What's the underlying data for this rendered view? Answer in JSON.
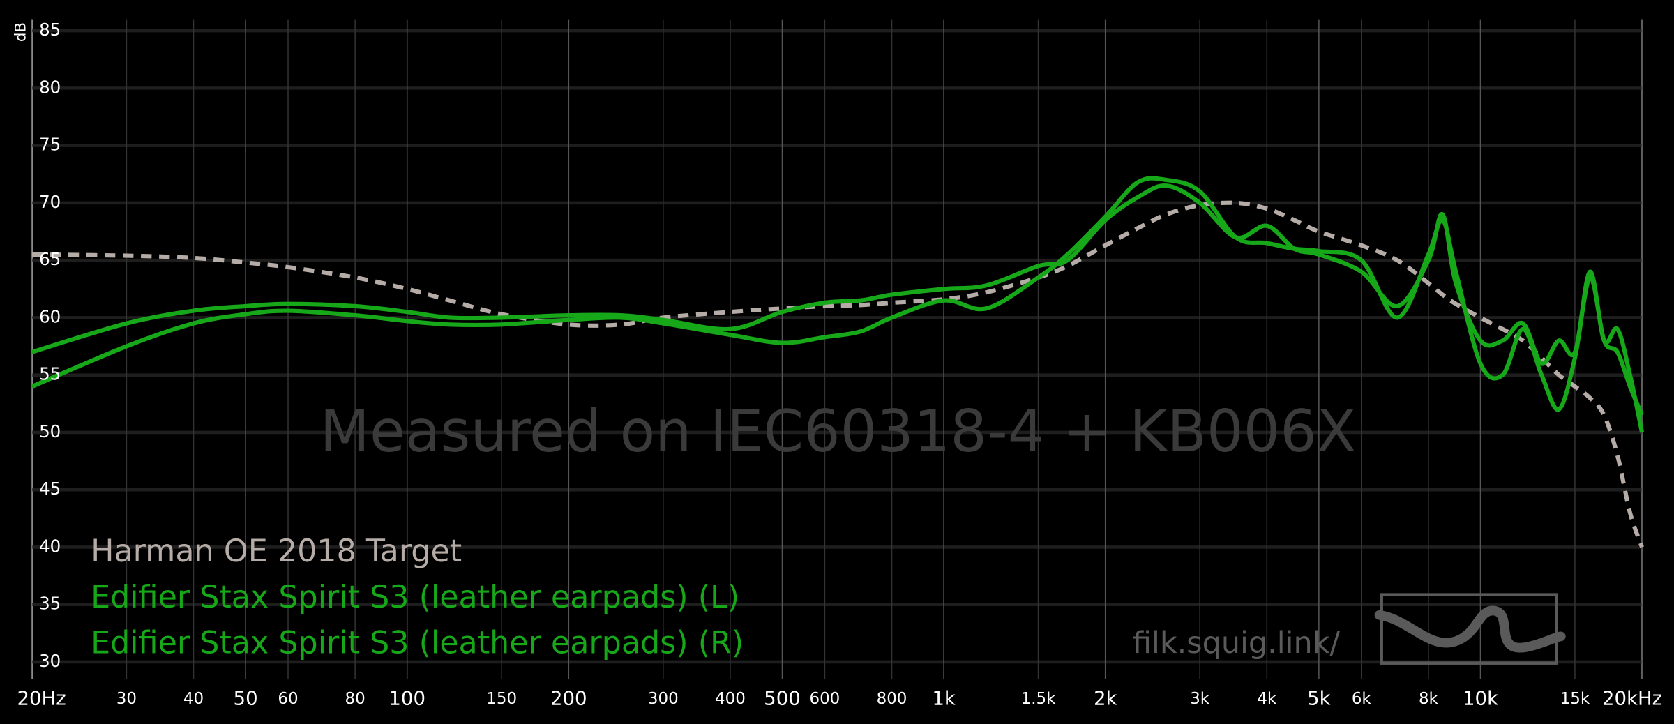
{
  "chart_data": {
    "type": "line",
    "y_label": "dB",
    "annotations": [
      "Measured on IEC60318-4 + KB006X",
      "filk.squig.link/"
    ],
    "log_x": true,
    "grid": true,
    "legend": "bottom-left",
    "xlim": [
      20,
      20000
    ],
    "ylim": [
      28.5,
      86
    ],
    "xticks": [
      {
        "value": 20,
        "label": "20Hz"
      },
      30,
      40,
      50,
      60,
      80,
      100,
      150,
      200,
      300,
      400,
      500,
      600,
      800,
      {
        "value": 1000,
        "label": "1k"
      },
      {
        "value": 1500,
        "label": "1.5k"
      },
      {
        "value": 2000,
        "label": "2k"
      },
      {
        "value": 3000,
        "label": "3k"
      },
      {
        "value": 4000,
        "label": "4k"
      },
      {
        "value": 5000,
        "label": "5k"
      },
      {
        "value": 6000,
        "label": "6k"
      },
      {
        "value": 8000,
        "label": "8k"
      },
      {
        "value": 10000,
        "label": "10k"
      },
      {
        "value": 15000,
        "label": "15k"
      },
      {
        "value": 20000,
        "label": "20kHz"
      }
    ],
    "yticks": [
      30,
      35,
      40,
      45,
      50,
      55,
      60,
      65,
      70,
      75,
      80,
      85
    ],
    "x": [
      20,
      30,
      40,
      50,
      60,
      80,
      100,
      120,
      150,
      200,
      250,
      300,
      400,
      500,
      600,
      700,
      800,
      1000,
      1200,
      1500,
      1700,
      2000,
      2300,
      2600,
      3000,
      3500,
      4000,
      4500,
      5000,
      6000,
      7000,
      8000,
      8500,
      9000,
      10000,
      11000,
      12000,
      13000,
      14000,
      15000,
      16000,
      17000,
      18000,
      19000,
      20000
    ],
    "series": [
      {
        "name": "Harman OE 2018 Target",
        "color": "#b5aca7",
        "dashed": true,
        "values": [
          65.5,
          65.4,
          65.2,
          64.8,
          64.4,
          63.5,
          62.5,
          61.5,
          60.3,
          59.4,
          59.4,
          60,
          60.5,
          60.8,
          61,
          61.1,
          61.3,
          61.6,
          62.2,
          63.5,
          64.5,
          66.3,
          67.8,
          69,
          69.8,
          70,
          69.5,
          68.5,
          67.5,
          66.3,
          65,
          63,
          62,
          61.2,
          60,
          59,
          58,
          56.5,
          55,
          54,
          53,
          51.5,
          48,
          43,
          40
        ]
      },
      {
        "name": "Edifier Stax Spirit S3 (leather earpads) (L)",
        "color": "#17a81a",
        "values": [
          57,
          59.5,
          60.6,
          61,
          61.2,
          61,
          60.5,
          60,
          60,
          60.2,
          60.2,
          59.8,
          59,
          60.5,
          61.3,
          61.5,
          62,
          62.5,
          62.8,
          64.5,
          65,
          68.5,
          70.5,
          71.5,
          70,
          67,
          68,
          66,
          65.5,
          64,
          61,
          65,
          69,
          63,
          58,
          58,
          59.5,
          56,
          58,
          57,
          64,
          58,
          59,
          55,
          50
        ]
      },
      {
        "name": "Edifier Stax Spirit S3 (leather earpads) (R)",
        "color": "#17a81a",
        "values": [
          54,
          57.5,
          59.5,
          60.3,
          60.6,
          60.2,
          59.7,
          59.4,
          59.4,
          59.8,
          60,
          59.5,
          58.5,
          57.8,
          58.3,
          58.8,
          60,
          61.5,
          60.8,
          63.5,
          65.5,
          68.8,
          71.8,
          72,
          71,
          67,
          66.5,
          66,
          65.8,
          65,
          60,
          65.5,
          68.5,
          64,
          56,
          55,
          59,
          55,
          52,
          56.5,
          63.5,
          58,
          57,
          54,
          51.5
        ]
      }
    ]
  }
}
